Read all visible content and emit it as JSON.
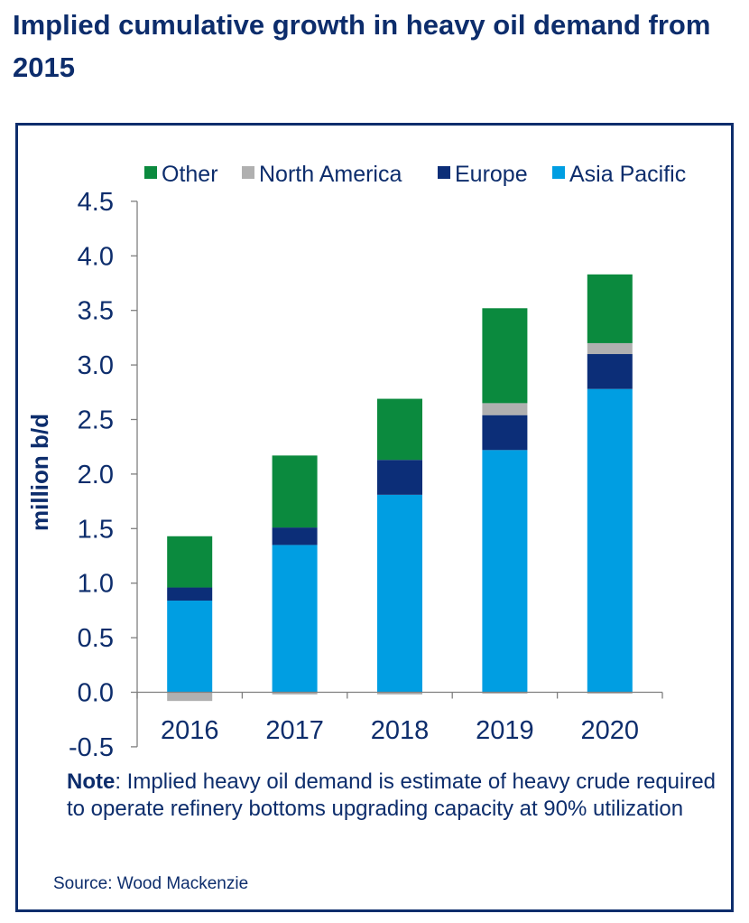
{
  "title": "Implied cumulative growth in heavy oil demand from 2015",
  "note": {
    "label": "Note",
    "text": ": Implied heavy oil demand is estimate of heavy crude required to operate refinery bottoms upgrading capacity at 90% utilization"
  },
  "source": "Source: Wood Mackenzie",
  "colors": {
    "text": "#0d2d6c",
    "Other": "#0b8a3e",
    "North America": "#b0b0b0",
    "Europe": "#0c2e78",
    "Asia Pacific": "#009ee2"
  },
  "chart_data": {
    "type": "bar",
    "stacked": true,
    "categories": [
      "2016",
      "2017",
      "2018",
      "2019",
      "2020"
    ],
    "series": [
      {
        "name": "Asia Pacific",
        "values": [
          0.84,
          1.35,
          1.81,
          2.22,
          2.78
        ]
      },
      {
        "name": "North America",
        "values": [
          -0.08,
          -0.02,
          -0.02,
          -0.01,
          -0.01
        ]
      },
      {
        "name": "Europe",
        "values": [
          0.12,
          0.16,
          0.32,
          0.32,
          0.32
        ]
      },
      {
        "name": "North America (positive)",
        "values": [
          0,
          0,
          0,
          0.11,
          0.1
        ]
      },
      {
        "name": "Other",
        "values": [
          0.47,
          0.66,
          0.56,
          0.87,
          0.63
        ]
      }
    ],
    "legend": [
      "Other",
      "North America",
      "Europe",
      "Asia Pacific"
    ],
    "legend_position": "top",
    "ylabel": "million b/d",
    "xlabel": "",
    "ylim": [
      -0.5,
      4.5
    ],
    "yticks": [
      "-0.5",
      "0.0",
      "0.5",
      "1.0",
      "1.5",
      "2.0",
      "2.5",
      "3.0",
      "3.5",
      "4.0",
      "4.5"
    ],
    "grid": false
  }
}
